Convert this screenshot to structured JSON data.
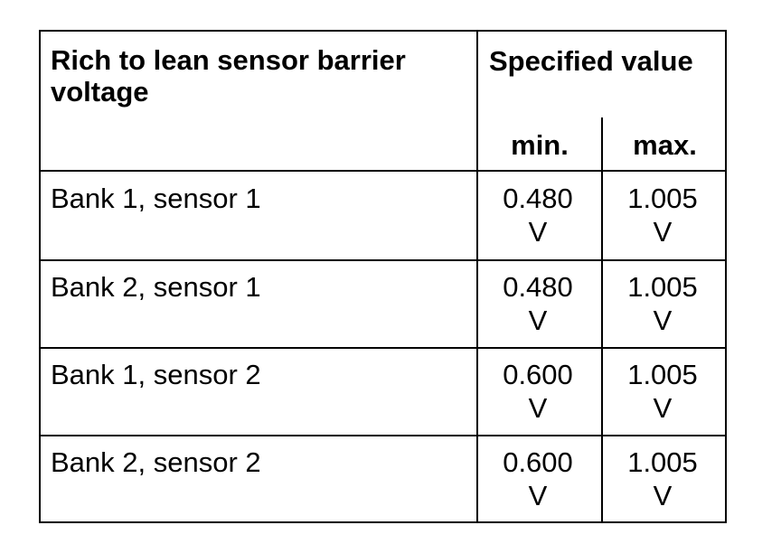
{
  "table": {
    "header": {
      "parameter": "Rich to lean sensor barrier voltage",
      "spec": "Specified value",
      "min": "min.",
      "max": "max."
    },
    "rows": [
      {
        "label": "Bank 1, sensor 1",
        "min": "0.480 V",
        "max": "1.005 V"
      },
      {
        "label": "Bank 2, sensor 1",
        "min": "0.480 V",
        "max": "1.005 V"
      },
      {
        "label": "Bank 1, sensor 2",
        "min": "0.600 V",
        "max": "1.005 V"
      },
      {
        "label": "Bank 2, sensor 2",
        "min": "0.600 V",
        "max": "1.005 V"
      }
    ]
  }
}
